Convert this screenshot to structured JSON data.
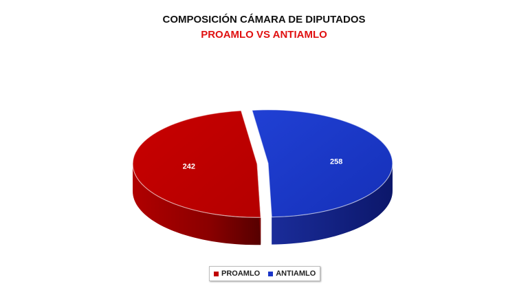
{
  "chart_data": {
    "type": "pie",
    "title": "COMPOSICIÓN CÁMARA DE DIPUTADOS",
    "subtitle": "PROAMLO VS ANTIAMLO",
    "categories": [
      "PROAMLO",
      "ANTIAMLO"
    ],
    "values": [
      242,
      258
    ],
    "data_labels": [
      "242",
      "258"
    ],
    "colors": [
      "#c00000",
      "#1a35c8"
    ],
    "legend_placement": "bottom",
    "style": "3d-exploded"
  }
}
